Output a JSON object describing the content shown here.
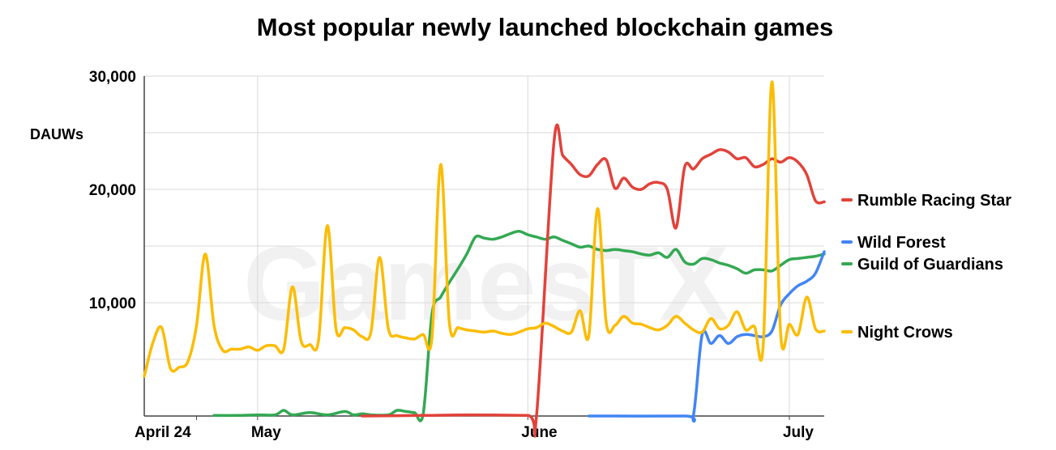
{
  "chart_data": {
    "type": "line",
    "title": "Most popular newly launched blockchain games",
    "ylabel": "DAUWs",
    "xlabel": "",
    "watermark": "GamesTX",
    "x_range": [
      "2023-04-18",
      "2023-07-05"
    ],
    "ylim": [
      0,
      30000
    ],
    "y_ticks": [
      {
        "value": 10000,
        "label": "10,000"
      },
      {
        "value": 20000,
        "label": "20,000"
      },
      {
        "value": 30000,
        "label": "30,000"
      }
    ],
    "x_ticks": [
      {
        "date": "2023-04-24",
        "label": "April 24"
      },
      {
        "date": "2023-05-01",
        "label": "May"
      },
      {
        "date": "2023-06-01",
        "label": "June"
      },
      {
        "date": "2023-07-01",
        "label": "July"
      }
    ],
    "grid": true,
    "legend_position": "right",
    "series": [
      {
        "name": "Rumble Racing Star",
        "color": "#e2423a",
        "points": [
          [
            "2023-05-13",
            0
          ],
          [
            "2023-05-20",
            50
          ],
          [
            "2023-05-25",
            100
          ],
          [
            "2023-06-01",
            50
          ],
          [
            "2023-06-02",
            0
          ],
          [
            "2023-06-04",
            24200
          ],
          [
            "2023-06-05",
            23000
          ],
          [
            "2023-06-06",
            22200
          ],
          [
            "2023-06-07",
            21300
          ],
          [
            "2023-06-08",
            21200
          ],
          [
            "2023-06-09",
            22200
          ],
          [
            "2023-06-10",
            22600
          ],
          [
            "2023-06-11",
            20100
          ],
          [
            "2023-06-12",
            21000
          ],
          [
            "2023-06-13",
            20200
          ],
          [
            "2023-06-14",
            20000
          ],
          [
            "2023-06-15",
            20500
          ],
          [
            "2023-06-16",
            20600
          ],
          [
            "2023-06-17",
            20000
          ],
          [
            "2023-06-18",
            16600
          ],
          [
            "2023-06-19",
            22000
          ],
          [
            "2023-06-20",
            21800
          ],
          [
            "2023-06-21",
            22700
          ],
          [
            "2023-06-22",
            23100
          ],
          [
            "2023-06-23",
            23500
          ],
          [
            "2023-06-24",
            23300
          ],
          [
            "2023-06-25",
            22700
          ],
          [
            "2023-06-26",
            22800
          ],
          [
            "2023-06-27",
            22000
          ],
          [
            "2023-06-28",
            22200
          ],
          [
            "2023-06-29",
            22700
          ],
          [
            "2023-06-30",
            22400
          ],
          [
            "2023-07-01",
            22800
          ],
          [
            "2023-07-02",
            22400
          ],
          [
            "2023-07-03",
            21300
          ],
          [
            "2023-07-04",
            19000
          ],
          [
            "2023-07-05",
            18900
          ]
        ]
      },
      {
        "name": "Wild Forest",
        "color": "#4285f4",
        "points": [
          [
            "2023-06-08",
            0
          ],
          [
            "2023-06-19",
            0
          ],
          [
            "2023-06-20",
            100
          ],
          [
            "2023-06-21",
            7200
          ],
          [
            "2023-06-22",
            6400
          ],
          [
            "2023-06-23",
            7100
          ],
          [
            "2023-06-24",
            6400
          ],
          [
            "2023-06-25",
            7000
          ],
          [
            "2023-06-26",
            7200
          ],
          [
            "2023-06-27",
            7100
          ],
          [
            "2023-06-28",
            7000
          ],
          [
            "2023-06-29",
            7500
          ],
          [
            "2023-06-30",
            9800
          ],
          [
            "2023-07-01",
            10800
          ],
          [
            "2023-07-02",
            11500
          ],
          [
            "2023-07-03",
            11900
          ],
          [
            "2023-07-04",
            12600
          ],
          [
            "2023-07-05",
            14500
          ]
        ]
      },
      {
        "name": "Guild of Guardians",
        "color": "#34a853",
        "points": [
          [
            "2023-04-26",
            50
          ],
          [
            "2023-04-29",
            50
          ],
          [
            "2023-05-01",
            100
          ],
          [
            "2023-05-03",
            100
          ],
          [
            "2023-05-04",
            500
          ],
          [
            "2023-05-05",
            100
          ],
          [
            "2023-05-07",
            300
          ],
          [
            "2023-05-09",
            100
          ],
          [
            "2023-05-11",
            400
          ],
          [
            "2023-05-12",
            100
          ],
          [
            "2023-05-13",
            200
          ],
          [
            "2023-05-14",
            100
          ],
          [
            "2023-05-16",
            100
          ],
          [
            "2023-05-17",
            500
          ],
          [
            "2023-05-18",
            400
          ],
          [
            "2023-05-19",
            300
          ],
          [
            "2023-05-20",
            200
          ],
          [
            "2023-05-21",
            9000
          ],
          [
            "2023-05-22",
            10500
          ],
          [
            "2023-05-23",
            11800
          ],
          [
            "2023-05-24",
            13000
          ],
          [
            "2023-05-25",
            14300
          ],
          [
            "2023-05-26",
            15800
          ],
          [
            "2023-05-27",
            15700
          ],
          [
            "2023-05-28",
            15600
          ],
          [
            "2023-05-29",
            15800
          ],
          [
            "2023-05-30",
            16100
          ],
          [
            "2023-05-31",
            16300
          ],
          [
            "2023-06-01",
            16000
          ],
          [
            "2023-06-02",
            15800
          ],
          [
            "2023-06-03",
            15600
          ],
          [
            "2023-06-04",
            15800
          ],
          [
            "2023-06-05",
            15500
          ],
          [
            "2023-06-06",
            15200
          ],
          [
            "2023-06-07",
            14900
          ],
          [
            "2023-06-08",
            15000
          ],
          [
            "2023-06-09",
            14700
          ],
          [
            "2023-06-10",
            14600
          ],
          [
            "2023-06-11",
            14700
          ],
          [
            "2023-06-12",
            14600
          ],
          [
            "2023-06-13",
            14500
          ],
          [
            "2023-06-14",
            14300
          ],
          [
            "2023-06-15",
            14200
          ],
          [
            "2023-06-16",
            14400
          ],
          [
            "2023-06-17",
            14000
          ],
          [
            "2023-06-18",
            14700
          ],
          [
            "2023-06-19",
            13600
          ],
          [
            "2023-06-20",
            13400
          ],
          [
            "2023-06-21",
            13900
          ],
          [
            "2023-06-22",
            13800
          ],
          [
            "2023-06-23",
            13500
          ],
          [
            "2023-06-24",
            13300
          ],
          [
            "2023-06-25",
            13000
          ],
          [
            "2023-06-26",
            12600
          ],
          [
            "2023-06-27",
            12900
          ],
          [
            "2023-06-28",
            12900
          ],
          [
            "2023-06-29",
            12800
          ],
          [
            "2023-06-30",
            13300
          ],
          [
            "2023-07-01",
            13800
          ],
          [
            "2023-07-02",
            13900
          ],
          [
            "2023-07-03",
            14000
          ],
          [
            "2023-07-04",
            14100
          ],
          [
            "2023-07-05",
            14300
          ]
        ]
      },
      {
        "name": "Night Crows",
        "color": "#fbbc04",
        "points": [
          [
            "2023-04-18",
            3500
          ],
          [
            "2023-04-19",
            6500
          ],
          [
            "2023-04-20",
            7800
          ],
          [
            "2023-04-21",
            4200
          ],
          [
            "2023-04-22",
            4300
          ],
          [
            "2023-04-23",
            4800
          ],
          [
            "2023-04-24",
            8000
          ],
          [
            "2023-04-25",
            14300
          ],
          [
            "2023-04-26",
            8000
          ],
          [
            "2023-04-27",
            5800
          ],
          [
            "2023-04-28",
            5900
          ],
          [
            "2023-04-29",
            5900
          ],
          [
            "2023-04-30",
            6100
          ],
          [
            "2023-05-01",
            5800
          ],
          [
            "2023-05-02",
            6200
          ],
          [
            "2023-05-03",
            6200
          ],
          [
            "2023-05-04",
            5900
          ],
          [
            "2023-05-05",
            11400
          ],
          [
            "2023-05-06",
            6600
          ],
          [
            "2023-05-07",
            6300
          ],
          [
            "2023-05-08",
            6700
          ],
          [
            "2023-05-09",
            16800
          ],
          [
            "2023-05-10",
            7700
          ],
          [
            "2023-05-11",
            7800
          ],
          [
            "2023-05-12",
            7600
          ],
          [
            "2023-05-13",
            7000
          ],
          [
            "2023-05-14",
            7400
          ],
          [
            "2023-05-15",
            14000
          ],
          [
            "2023-05-16",
            7700
          ],
          [
            "2023-05-17",
            7100
          ],
          [
            "2023-05-18",
            6900
          ],
          [
            "2023-05-19",
            6800
          ],
          [
            "2023-05-20",
            7200
          ],
          [
            "2023-05-21",
            6900
          ],
          [
            "2023-05-22",
            22200
          ],
          [
            "2023-05-23",
            8200
          ],
          [
            "2023-05-24",
            7800
          ],
          [
            "2023-05-25",
            7600
          ],
          [
            "2023-05-26",
            7500
          ],
          [
            "2023-05-27",
            7400
          ],
          [
            "2023-05-28",
            7500
          ],
          [
            "2023-05-29",
            7300
          ],
          [
            "2023-05-30",
            7200
          ],
          [
            "2023-05-31",
            7400
          ],
          [
            "2023-06-01",
            7700
          ],
          [
            "2023-06-02",
            7800
          ],
          [
            "2023-06-03",
            8200
          ],
          [
            "2023-06-04",
            7900
          ],
          [
            "2023-06-05",
            7500
          ],
          [
            "2023-06-06",
            7400
          ],
          [
            "2023-06-07",
            9300
          ],
          [
            "2023-06-08",
            7100
          ],
          [
            "2023-06-09",
            18300
          ],
          [
            "2023-06-10",
            8200
          ],
          [
            "2023-06-11",
            8000
          ],
          [
            "2023-06-12",
            8800
          ],
          [
            "2023-06-13",
            8200
          ],
          [
            "2023-06-14",
            8100
          ],
          [
            "2023-06-15",
            7800
          ],
          [
            "2023-06-16",
            7600
          ],
          [
            "2023-06-17",
            8000
          ],
          [
            "2023-06-18",
            8800
          ],
          [
            "2023-06-19",
            8200
          ],
          [
            "2023-06-20",
            7600
          ],
          [
            "2023-06-21",
            7400
          ],
          [
            "2023-06-22",
            8600
          ],
          [
            "2023-06-23",
            7700
          ],
          [
            "2023-06-24",
            8000
          ],
          [
            "2023-06-25",
            9200
          ],
          [
            "2023-06-26",
            7600
          ],
          [
            "2023-06-27",
            7900
          ],
          [
            "2023-06-28",
            6200
          ],
          [
            "2023-06-29",
            29500
          ],
          [
            "2023-06-30",
            7300
          ],
          [
            "2023-07-01",
            8100
          ],
          [
            "2023-07-02",
            7200
          ],
          [
            "2023-07-03",
            10500
          ],
          [
            "2023-07-04",
            7700
          ],
          [
            "2023-07-05",
            7500
          ]
        ]
      }
    ]
  }
}
